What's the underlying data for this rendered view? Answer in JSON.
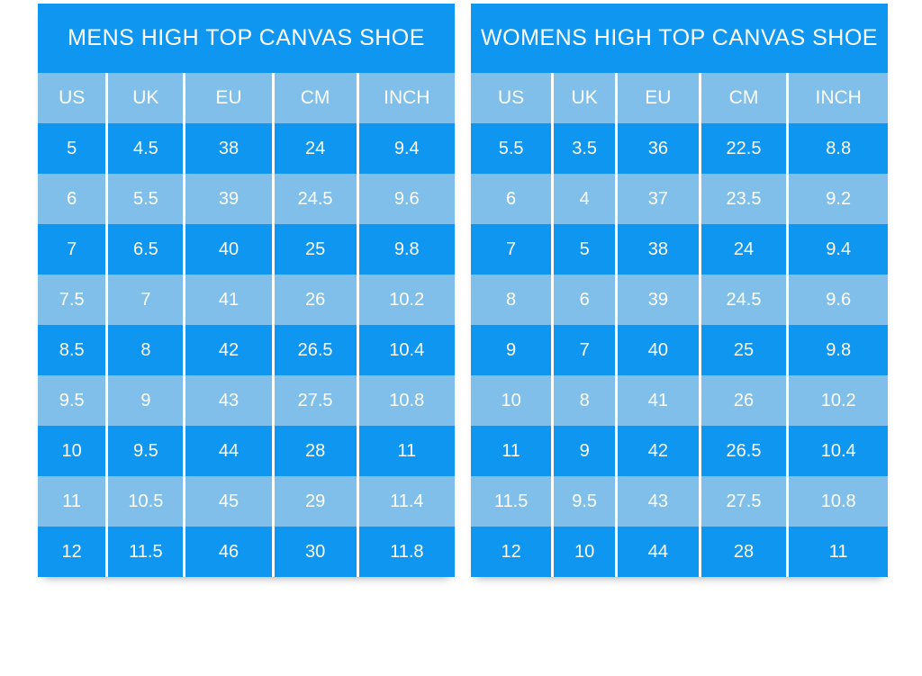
{
  "colors": {
    "dark_blue": "#0E96F0",
    "light_blue": "#7FBFE9",
    "text": "#FFFFFF",
    "page_background": "#FFFFFF"
  },
  "chart_data": [
    {
      "type": "table",
      "title": "MENS HIGH TOP CANVAS SHOE",
      "columns": [
        "US",
        "UK",
        "EU",
        "CM",
        "INCH"
      ],
      "rows": [
        [
          "5",
          "4.5",
          "38",
          "24",
          "9.4"
        ],
        [
          "6",
          "5.5",
          "39",
          "24.5",
          "9.6"
        ],
        [
          "7",
          "6.5",
          "40",
          "25",
          "9.8"
        ],
        [
          "7.5",
          "7",
          "41",
          "26",
          "10.2"
        ],
        [
          "8.5",
          "8",
          "42",
          "26.5",
          "10.4"
        ],
        [
          "9.5",
          "9",
          "43",
          "27.5",
          "10.8"
        ],
        [
          "10",
          "9.5",
          "44",
          "28",
          "11"
        ],
        [
          "11",
          "10.5",
          "45",
          "29",
          "11.4"
        ],
        [
          "12",
          "11.5",
          "46",
          "30",
          "11.8"
        ]
      ],
      "layout": {
        "row_striping": "odd-dark-even-light",
        "header_background": "light_blue",
        "title_background": "dark_blue"
      }
    },
    {
      "type": "table",
      "title": "WOMENS HIGH TOP CANVAS SHOE",
      "columns": [
        "US",
        "UK",
        "EU",
        "CM",
        "INCH"
      ],
      "rows": [
        [
          "5.5",
          "3.5",
          "36",
          "22.5",
          "8.8"
        ],
        [
          "6",
          "4",
          "37",
          "23.5",
          "9.2"
        ],
        [
          "7",
          "5",
          "38",
          "24",
          "9.4"
        ],
        [
          "8",
          "6",
          "39",
          "24.5",
          "9.6"
        ],
        [
          "9",
          "7",
          "40",
          "25",
          "9.8"
        ],
        [
          "10",
          "8",
          "41",
          "26",
          "10.2"
        ],
        [
          "11",
          "9",
          "42",
          "26.5",
          "10.4"
        ],
        [
          "11.5",
          "9.5",
          "43",
          "27.5",
          "10.8"
        ],
        [
          "12",
          "10",
          "44",
          "28",
          "11"
        ]
      ],
      "layout": {
        "row_striping": "odd-dark-even-light",
        "header_background": "light_blue",
        "title_background": "dark_blue"
      }
    }
  ]
}
